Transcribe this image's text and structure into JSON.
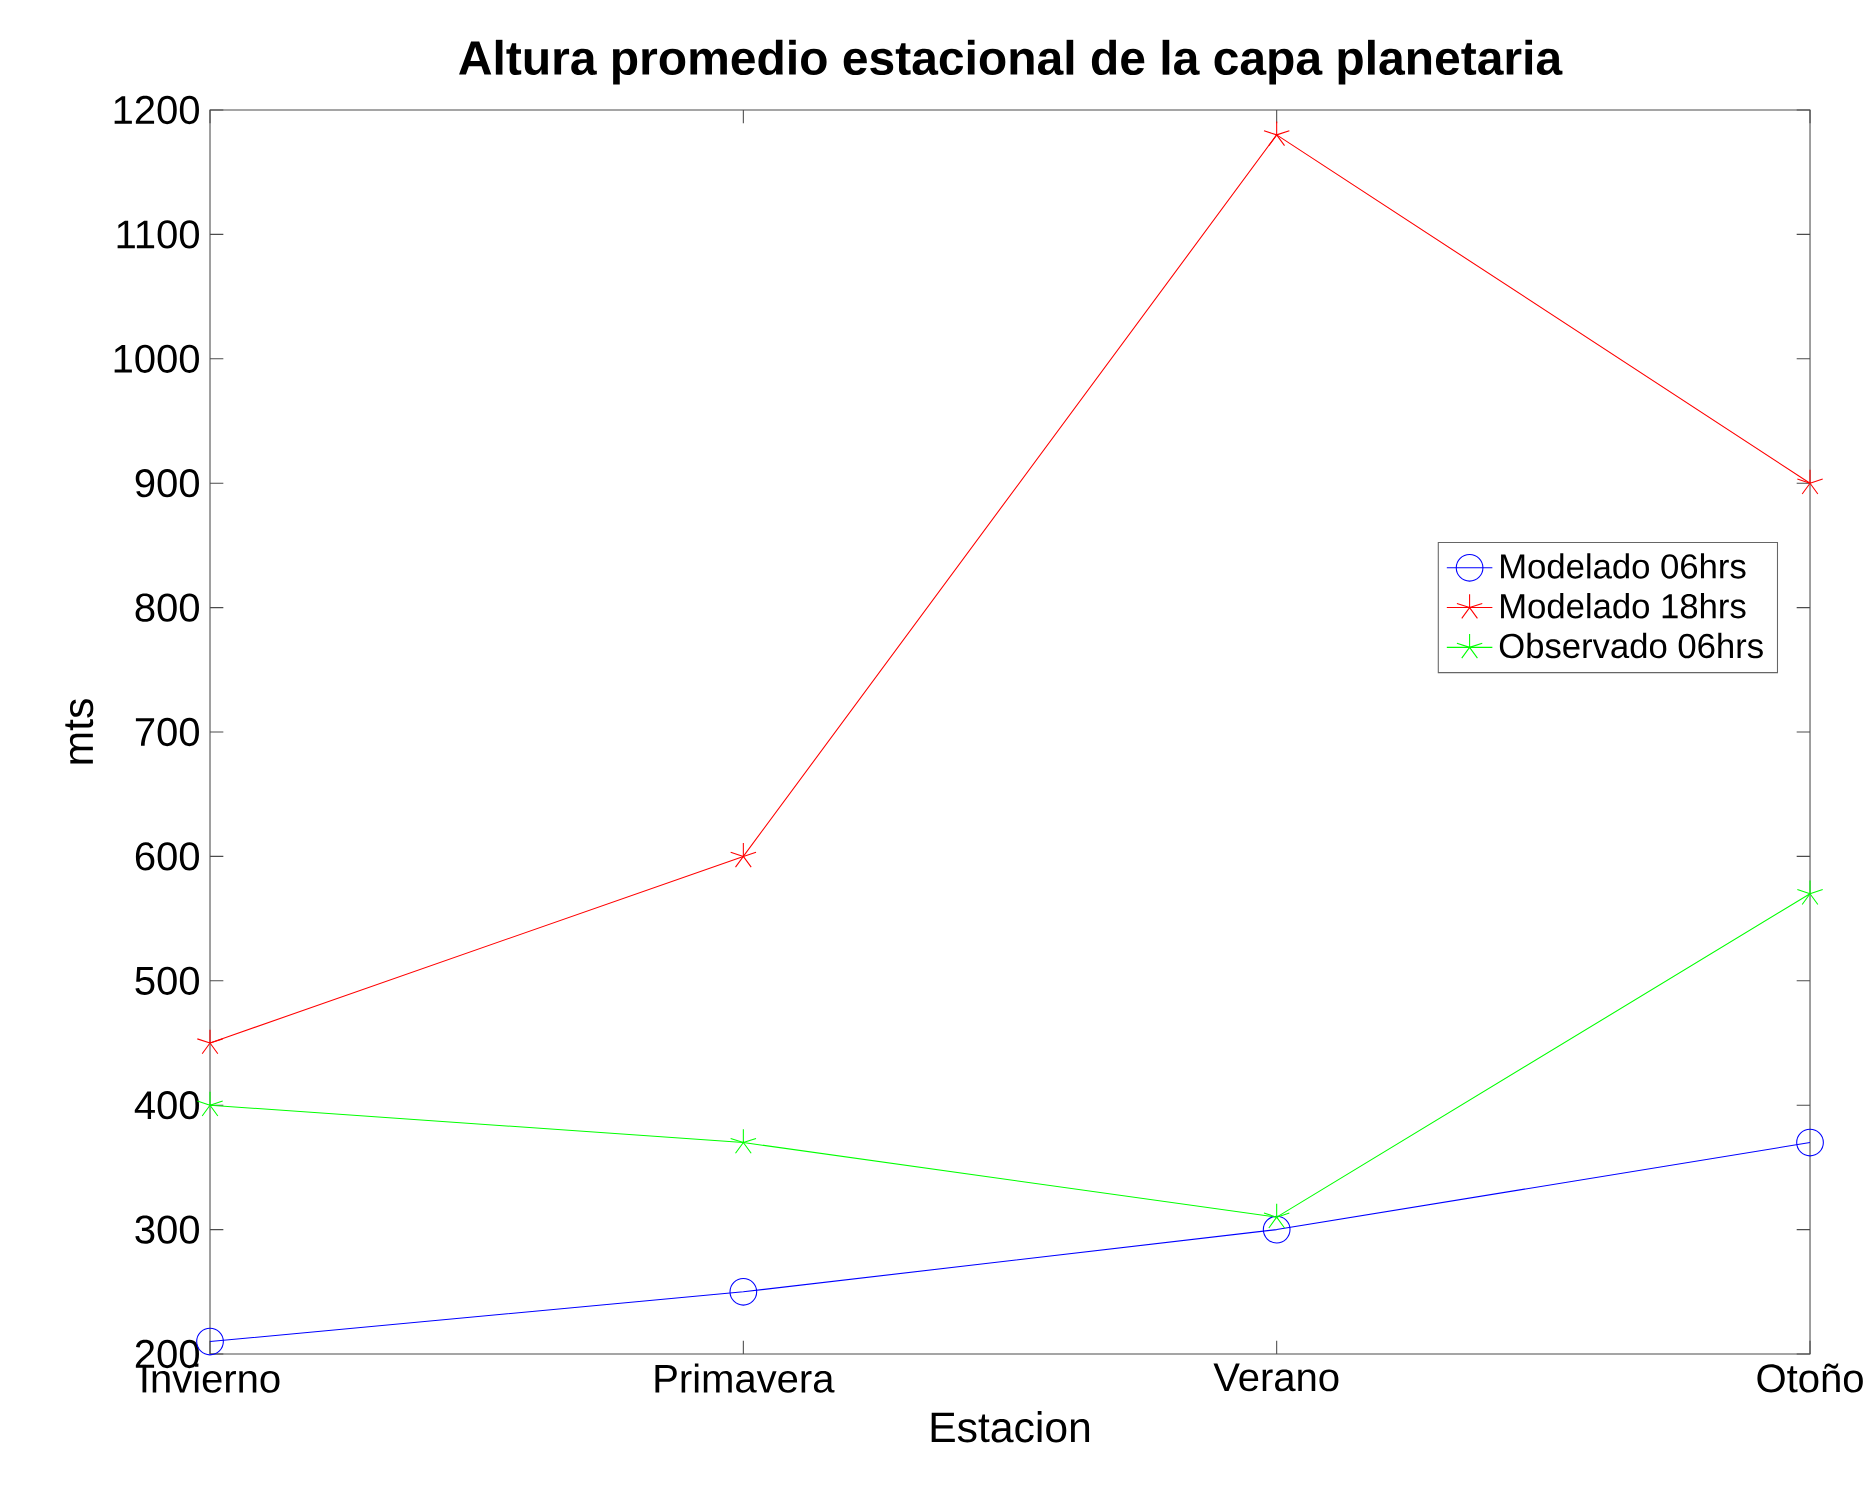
{
  "chart_data": {
    "type": "line",
    "title": "Altura promedio estacional de la capa planetaria",
    "xlabel": "Estacion",
    "ylabel": "mts",
    "categories": [
      "Invierno",
      "Primavera",
      "Verano",
      "Otoño"
    ],
    "series": [
      {
        "name": "Modelado 06hrs",
        "color": "#0000ff",
        "marker": "circle",
        "values": [
          210,
          250,
          300,
          370
        ]
      },
      {
        "name": "Modelado 18hrs",
        "color": "#ff0000",
        "marker": "cross",
        "values": [
          450,
          600,
          1180,
          900
        ]
      },
      {
        "name": "Observado 06hrs",
        "color": "#00ff00",
        "marker": "cross",
        "values": [
          400,
          370,
          310,
          570
        ]
      }
    ],
    "ylim": [
      200,
      1200
    ],
    "yticks": [
      200,
      300,
      400,
      500,
      600,
      700,
      800,
      900,
      1000,
      1100,
      1200
    ],
    "legend": "right",
    "grid": false,
    "line_style": "solid"
  }
}
